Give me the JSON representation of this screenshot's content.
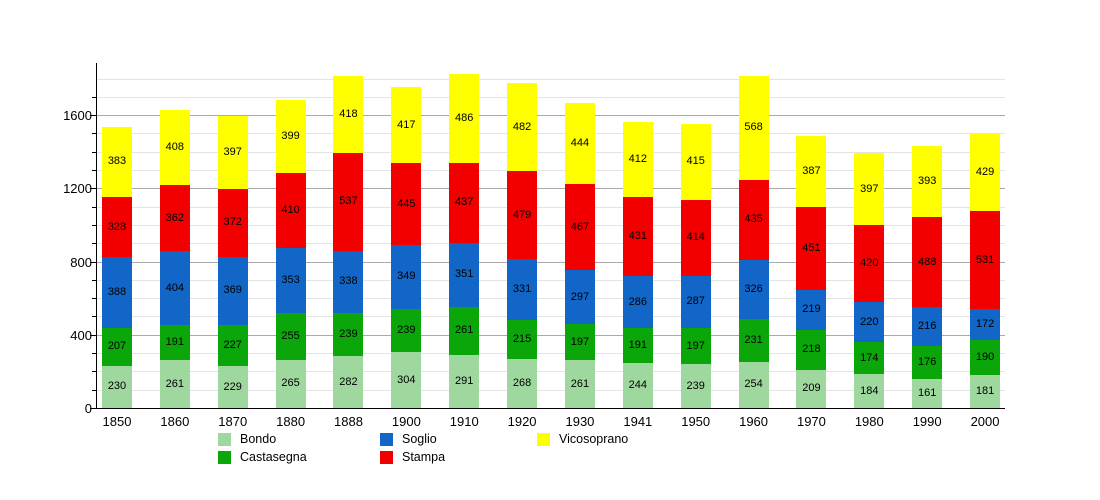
{
  "chart_data": {
    "type": "bar",
    "stacked": true,
    "title": "",
    "xlabel": "",
    "ylabel": "",
    "categories": [
      "1850",
      "1860",
      "1870",
      "1880",
      "1888",
      "1900",
      "1910",
      "1920",
      "1930",
      "1941",
      "1950",
      "1960",
      "1970",
      "1980",
      "1990",
      "2000"
    ],
    "series": [
      {
        "name": "Bondo",
        "color": "#9fd89f",
        "values": [
          230,
          261,
          229,
          265,
          282,
          304,
          291,
          268,
          261,
          244,
          239,
          254,
          209,
          184,
          161,
          181
        ]
      },
      {
        "name": "Castasegna",
        "color": "#0aa60a",
        "values": [
          207,
          191,
          227,
          255,
          239,
          239,
          261,
          215,
          197,
          191,
          197,
          231,
          218,
          174,
          176,
          190
        ]
      },
      {
        "name": "Soglio",
        "color": "#1166c8",
        "values": [
          388,
          404,
          369,
          353,
          338,
          349,
          351,
          331,
          297,
          286,
          287,
          326,
          219,
          220,
          216,
          172
        ]
      },
      {
        "name": "Stampa",
        "color": "#f20000",
        "values": [
          328,
          362,
          372,
          410,
          537,
          445,
          437,
          479,
          467,
          431,
          414,
          435,
          451,
          420,
          488,
          531
        ]
      },
      {
        "name": "Vicosoprano",
        "color": "#ffff00",
        "values": [
          383,
          408,
          397,
          399,
          418,
          417,
          486,
          482,
          444,
          412,
          415,
          568,
          387,
          397,
          393,
          429
        ]
      }
    ],
    "ylim": [
      0,
      1885
    ],
    "yticks": [
      0,
      400,
      800,
      1200,
      1600
    ],
    "minor_grid_step": 100,
    "major_grid_step": 400,
    "grid": "horizontal",
    "legend_position": "bottom",
    "legend_columns": [
      [
        "Bondo",
        "Castasegna"
      ],
      [
        "Soglio",
        "Stampa"
      ],
      [
        "Vicosoprano"
      ]
    ],
    "value_labels": "inside-segments",
    "colors": {
      "axis": "#000000",
      "minor_grid": "#e4e4e4",
      "major_grid": "#aaaaaa",
      "background": "#ffffff",
      "label_text": "#000000"
    }
  }
}
